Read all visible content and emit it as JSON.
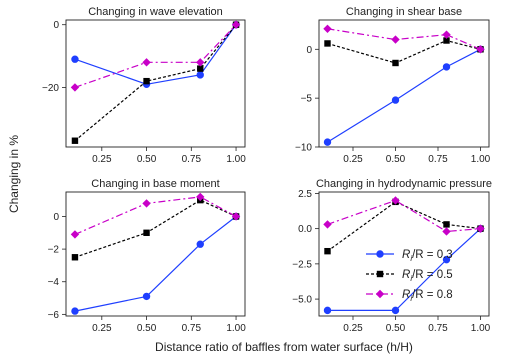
{
  "figure": {
    "ylabel": "Changing in %",
    "xlabel": "Distance ratio of baffles from water surface (h/H)"
  },
  "legend": {
    "placement": "lower-right of bottom-right panel",
    "entries": [
      {
        "label_prefix": "R",
        "label_sub": "i",
        "label_suffix": "/R = 0.3",
        "color": "#1f3fff",
        "marker": "circle",
        "dash": "solid"
      },
      {
        "label_prefix": "R",
        "label_sub": "i",
        "label_suffix": "/R = 0.5",
        "color": "#000000",
        "marker": "square",
        "dash": "dotted"
      },
      {
        "label_prefix": "R",
        "label_sub": "i",
        "label_suffix": "/R = 0.8",
        "color": "#c800c8",
        "marker": "diamond",
        "dash": "dashdot"
      }
    ]
  },
  "chart_data": [
    {
      "type": "line",
      "title": "Changing in wave elevation",
      "x": [
        0.1,
        0.5,
        0.8,
        1.0
      ],
      "xticks": [
        0.25,
        0.5,
        0.75,
        1.0
      ],
      "xtick_labels": [
        "0.25",
        "0.50",
        "0.75",
        "1.00"
      ],
      "xlim": [
        0.05,
        1.05
      ],
      "ylim": [
        -39,
        1.5
      ],
      "yticks": [
        0,
        -20
      ],
      "ytick_labels": [
        "0",
        "−20"
      ],
      "show_xticklabels": true,
      "series": [
        {
          "name": "Ri/R = 0.3",
          "values": [
            -11,
            -19,
            -16,
            0
          ]
        },
        {
          "name": "Ri/R = 0.5",
          "values": [
            -37,
            -18,
            -14,
            0
          ]
        },
        {
          "name": "Ri/R = 0.8",
          "values": [
            -20,
            -12,
            -12,
            0
          ]
        }
      ]
    },
    {
      "type": "line",
      "title": "Changing in shear base",
      "x": [
        0.1,
        0.5,
        0.8,
        1.0
      ],
      "xticks": [
        0.25,
        0.5,
        0.75,
        1.0
      ],
      "xtick_labels": [
        "0.25",
        "0.50",
        "0.75",
        "1.00"
      ],
      "xlim": [
        0.05,
        1.05
      ],
      "ylim": [
        -10,
        3
      ],
      "yticks": [
        0,
        -5,
        -10
      ],
      "ytick_labels": [
        "0",
        "−5",
        "−10"
      ],
      "show_xticklabels": true,
      "series": [
        {
          "name": "Ri/R = 0.3",
          "values": [
            -9.5,
            -5.2,
            -1.8,
            0
          ]
        },
        {
          "name": "Ri/R = 0.5",
          "values": [
            0.6,
            -1.4,
            0.9,
            0
          ]
        },
        {
          "name": "Ri/R = 0.8",
          "values": [
            2.1,
            1.0,
            1.5,
            0
          ]
        }
      ]
    },
    {
      "type": "line",
      "title": "Changing in base moment",
      "x": [
        0.1,
        0.5,
        0.8,
        1.0
      ],
      "xticks": [
        0.25,
        0.5,
        0.75,
        1.0
      ],
      "xtick_labels": [
        "0.25",
        "0.50",
        "0.75",
        "1.00"
      ],
      "xlim": [
        0.05,
        1.05
      ],
      "ylim": [
        -6.1,
        1.5
      ],
      "yticks": [
        0,
        -2,
        -4,
        -6
      ],
      "ytick_labels": [
        "0",
        "−2",
        "−4",
        "−6"
      ],
      "show_xticklabels": true,
      "series": [
        {
          "name": "Ri/R = 0.3",
          "values": [
            -5.8,
            -4.9,
            -1.7,
            0
          ]
        },
        {
          "name": "Ri/R = 0.5",
          "values": [
            -2.5,
            -1.0,
            1.0,
            0
          ]
        },
        {
          "name": "Ri/R = 0.8",
          "values": [
            -1.1,
            0.8,
            1.2,
            0
          ]
        }
      ]
    },
    {
      "type": "line",
      "title": "Changing in hydrodynamic pressure",
      "x": [
        0.1,
        0.5,
        0.8,
        1.0
      ],
      "xticks": [
        0.25,
        0.5,
        0.75,
        1.0
      ],
      "xtick_labels": [
        "0.25",
        "0.50",
        "0.75",
        "1.00"
      ],
      "xlim": [
        0.05,
        1.05
      ],
      "ylim": [
        -6.2,
        2.6
      ],
      "yticks": [
        2.5,
        0,
        -2.5,
        -5
      ],
      "ytick_labels": [
        "2.5",
        "0.0",
        "−2.5",
        "−5.0"
      ],
      "show_xticklabels": true,
      "series": [
        {
          "name": "Ri/R = 0.3",
          "values": [
            -5.8,
            -5.8,
            -2.2,
            0
          ]
        },
        {
          "name": "Ri/R = 0.5",
          "values": [
            -1.6,
            1.9,
            0.3,
            0
          ]
        },
        {
          "name": "Ri/R = 0.8",
          "values": [
            0.3,
            2.0,
            -0.2,
            0
          ]
        }
      ]
    }
  ]
}
